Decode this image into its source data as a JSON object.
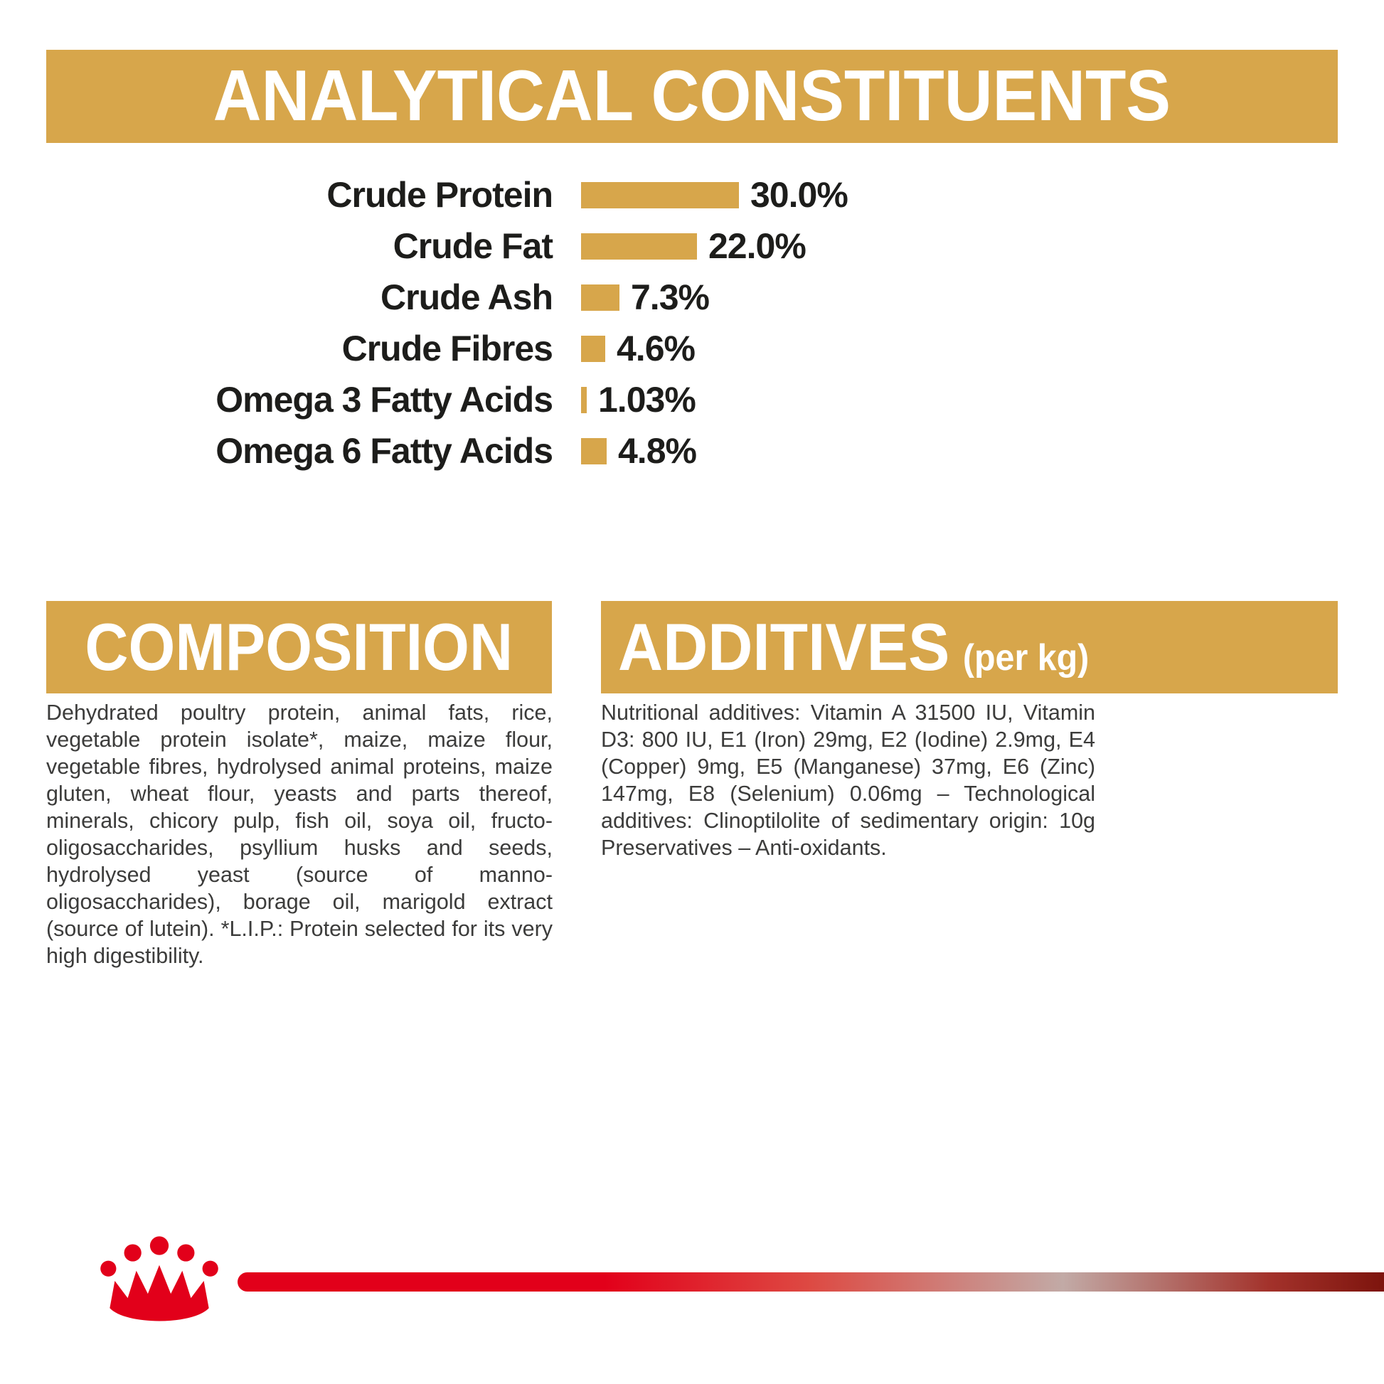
{
  "colors": {
    "gold": "#d7a64b",
    "dark_text": "#1d1d1b",
    "body_text": "#3c3c3b",
    "brand_red": "#e2001a",
    "white": "#ffffff"
  },
  "analytical": {
    "title": "ANALYTICAL CONSTITUENTS"
  },
  "chart_data": {
    "type": "bar",
    "orientation": "horizontal",
    "title": "ANALYTICAL CONSTITUENTS",
    "categories": [
      "Crude Protein",
      "Crude Fat",
      "Crude Ash",
      "Crude Fibres",
      "Omega 3 Fatty Acids",
      "Omega 6 Fatty Acids"
    ],
    "values": [
      30.0,
      22.0,
      7.3,
      4.6,
      1.03,
      4.8
    ],
    "value_labels": [
      "30.0%",
      "22.0%",
      "7.3%",
      "4.6%",
      "1.03%",
      "4.8%"
    ],
    "unit": "%",
    "xlim": [
      0,
      30
    ],
    "bar_color": "#d7a64b",
    "grid": false,
    "legend": false
  },
  "composition": {
    "title": "COMPOSITION",
    "body": "Dehydrated poultry protein, animal fats, rice, vegetable protein isolate*, maize, maize flour, vegetable fibres, hydrolysed animal proteins, maize gluten, wheat flour, yeasts and parts thereof, minerals, chicory pulp, fish oil, soya oil, fructo-oligosaccharides, psyllium husks and seeds, hydrolysed yeast (source of manno-oligosaccharides), borage oil, marigold extract (source of lutein). *L.I.P.: Protein selected for its very high digestibility."
  },
  "additives": {
    "title": "ADDITIVES",
    "title_suffix": "(per kg)",
    "body": "Nutritional additives: Vitamin A 31500 IU, Vitamin D3: 800 IU, E1 (Iron) 29mg, E2 (Iodine) 2.9mg, E4 (Copper) 9mg, E5 (Manganese) 37mg, E6 (Zinc) 147mg, E8 (Selenium) 0.06mg – Technological additives: Clinoptilolite of sedimentary origin: 10g Preservatives – Anti-oxidants."
  },
  "footer": {
    "brand_icon": "royal-canin-crown"
  }
}
